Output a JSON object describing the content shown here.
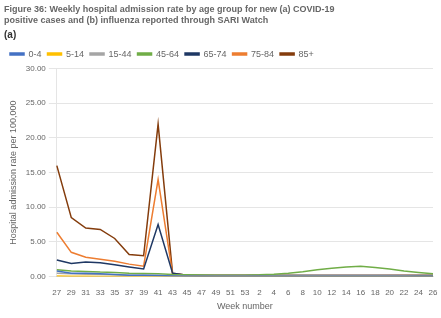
{
  "chart_data": {
    "type": "line",
    "title": "Figure 36: Weekly hospital admission rate by age group for new (a) COVID-19\npositive cases and (b) influenza reported through SARI Watch",
    "subtitle": "(a)",
    "x_label": "Week number",
    "y_label": "Hospital admission rate per 100,000",
    "categories": [
      "27",
      "29",
      "31",
      "33",
      "35",
      "37",
      "39",
      "41",
      "43",
      "45",
      "47",
      "49",
      "51",
      "53",
      "2",
      "4",
      "6",
      "8",
      "10",
      "12",
      "14",
      "16",
      "18",
      "20",
      "22",
      "24",
      "26"
    ],
    "series": [
      {
        "name": "0-4",
        "color": "#4472C4",
        "values": [
          0.8,
          0.5,
          0.5,
          0.4,
          0.3,
          0.2,
          0.2,
          0.15,
          0.1,
          0.05,
          0.05,
          0.05,
          0.05,
          0.05,
          0.05,
          0.05,
          0.05,
          0.05,
          0.05,
          0.05,
          0.05,
          0.05,
          0.05,
          0.05,
          0.05,
          0.05,
          0.05
        ]
      },
      {
        "name": "5-14",
        "color": "#FFC000",
        "values": [
          0.08,
          0.05,
          0.04,
          0.03,
          0.02,
          0.02,
          0.01,
          0.01,
          0.01,
          0.01,
          0.01,
          0.01,
          0.01,
          0.01,
          0.01,
          0.01,
          0.01,
          0.01,
          0.01,
          0.01,
          0.01,
          0.01,
          0.01,
          0.01,
          0.01,
          0.01,
          0.01
        ]
      },
      {
        "name": "15-44",
        "color": "#A5A5A5",
        "values": [
          0.5,
          0.4,
          0.35,
          0.3,
          0.25,
          0.2,
          0.18,
          0.15,
          0.12,
          0.1,
          0.1,
          0.1,
          0.1,
          0.1,
          0.1,
          0.12,
          0.15,
          0.18,
          0.2,
          0.2,
          0.2,
          0.2,
          0.18,
          0.15,
          0.12,
          0.1,
          0.1
        ]
      },
      {
        "name": "45-64",
        "color": "#70AD47",
        "values": [
          1.0,
          0.8,
          0.75,
          0.65,
          0.6,
          0.5,
          0.45,
          0.4,
          0.3,
          0.25,
          0.22,
          0.2,
          0.2,
          0.2,
          0.25,
          0.35,
          0.5,
          0.7,
          1.0,
          1.2,
          1.4,
          1.5,
          1.3,
          1.1,
          0.8,
          0.6,
          0.4
        ]
      },
      {
        "name": "65-74",
        "color": "#1F3864",
        "values": [
          2.4,
          1.9,
          2.1,
          2.0,
          1.7,
          1.4,
          1.1,
          7.5,
          0.5,
          0.2,
          0.15,
          0.15,
          0.15,
          0.15,
          0.15,
          0.15,
          0.15,
          0.15,
          0.15,
          0.15,
          0.15,
          0.15,
          0.15,
          0.15,
          0.15,
          0.15,
          0.15
        ]
      },
      {
        "name": "75-84",
        "color": "#ED7D31",
        "values": [
          6.4,
          3.5,
          2.8,
          2.5,
          2.2,
          1.8,
          1.5,
          14.0,
          0.4,
          0.2,
          0.15,
          0.15,
          0.15,
          0.15,
          0.15,
          0.15,
          0.15,
          0.15,
          0.15,
          0.15,
          0.15,
          0.15,
          0.15,
          0.15,
          0.15,
          0.15,
          0.15
        ]
      },
      {
        "name": "85+",
        "color": "#843C0C",
        "values": [
          16.0,
          8.5,
          7.0,
          6.8,
          5.5,
          3.2,
          3.0,
          22.0,
          0.5,
          0.2,
          0.15,
          0.15,
          0.15,
          0.15,
          0.15,
          0.15,
          0.15,
          0.15,
          0.15,
          0.15,
          0.15,
          0.15,
          0.15,
          0.15,
          0.15,
          0.15,
          0.15
        ]
      }
    ],
    "ylim": [
      0,
      30
    ],
    "yticks": [
      {
        "value": 0,
        "label": "0.00"
      },
      {
        "value": 5,
        "label": "5.00"
      },
      {
        "value": 10,
        "label": "10.00"
      },
      {
        "value": 15,
        "label": "15.00"
      },
      {
        "value": 20,
        "label": "20.00"
      },
      {
        "value": 25,
        "label": "25.00"
      },
      {
        "value": 30,
        "label": "30.00"
      }
    ],
    "grid": true,
    "legend": "upper left"
  }
}
